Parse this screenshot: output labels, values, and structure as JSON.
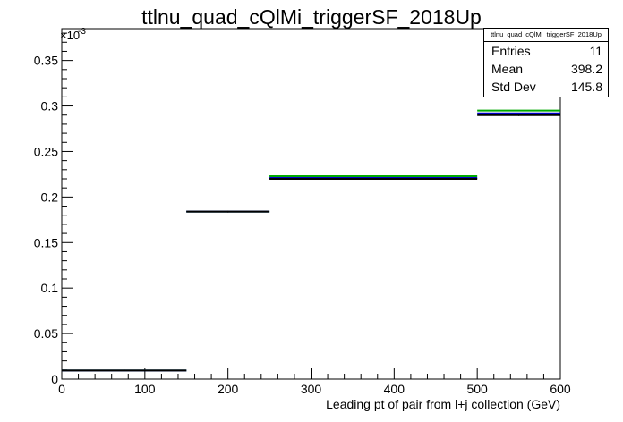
{
  "chart_data": {
    "type": "histogram",
    "title": "ttlnu_quad_cQlMi_triggerSF_2018Up",
    "xlabel": "Leading pt of pair from l+j collection (GeV)",
    "ylabel": "",
    "xlim": [
      0,
      600
    ],
    "ylim": [
      0,
      0.000385
    ],
    "y_exponent_label": "×10",
    "y_exponent_power": "-3",
    "x_ticks": [
      "0",
      "100",
      "200",
      "300",
      "400",
      "500",
      "600"
    ],
    "y_ticks": [
      "0",
      "0.05",
      "0.1",
      "0.15",
      "0.2",
      "0.25",
      "0.3",
      "0.35"
    ],
    "bins": [
      {
        "low": 0,
        "high": 150,
        "values": {
          "nominal": 9.5e-06,
          "up": 9.5e-06,
          "down": 9.5e-06
        }
      },
      {
        "low": 150,
        "high": 250,
        "values": {
          "nominal": 0.000184,
          "up": 0.000184,
          "down": 0.000184
        }
      },
      {
        "low": 250,
        "high": 500,
        "values": {
          "nominal": 0.00022,
          "up": 0.000223,
          "down": 0.000221
        }
      },
      {
        "low": 500,
        "high": 600,
        "values": {
          "nominal": 0.00029,
          "up": 0.000295,
          "down": 0.000292
        }
      }
    ],
    "series_colors": {
      "nominal": "#000000",
      "up": "#00aa00",
      "down": "#0000cc"
    },
    "stats_box": {
      "title": "ttlnu_quad_cQlMi_triggerSF_2018Up",
      "rows": [
        {
          "label": "Entries",
          "value": "11"
        },
        {
          "label": "Mean",
          "value": "398.2"
        },
        {
          "label": "Std Dev",
          "value": "145.8"
        }
      ]
    }
  }
}
